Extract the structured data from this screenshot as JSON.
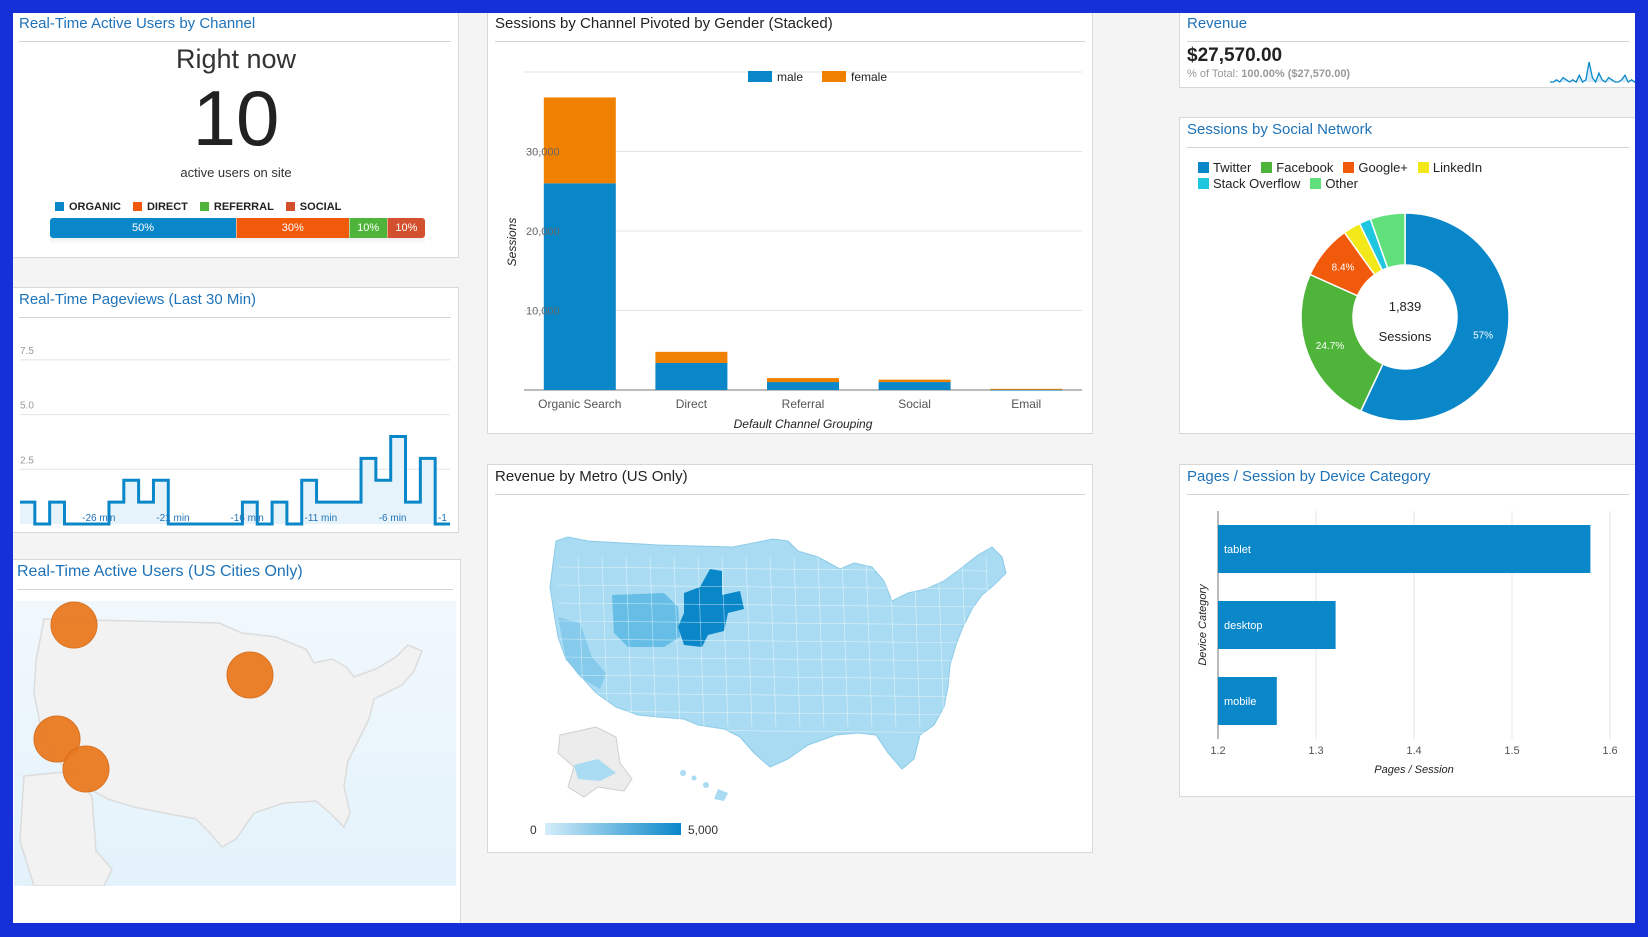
{
  "rt_channel": {
    "title": "Real-Time Active Users by Channel",
    "heading": "Right now",
    "count": "10",
    "subtitle": "active users on site",
    "legend": [
      {
        "label": "ORGANIC",
        "color": "#0a87c9"
      },
      {
        "label": "DIRECT",
        "color": "#f05a0a"
      },
      {
        "label": "REFERRAL",
        "color": "#4eb53a"
      },
      {
        "label": "SOCIAL",
        "color": "#d2502d"
      }
    ],
    "bar": [
      {
        "label": "50%",
        "value": 50,
        "color": "#0a87c9"
      },
      {
        "label": "30%",
        "value": 30,
        "color": "#f05a0a"
      },
      {
        "label": "10%",
        "value": 10,
        "color": "#4eb53a"
      },
      {
        "label": "10%",
        "value": 10,
        "color": "#d2502d"
      }
    ]
  },
  "rt_pageviews": {
    "title": "Real-Time Pageviews (Last 30 Min)",
    "chart_data": {
      "type": "area",
      "title": "Real-Time Pageviews (Last 30 Min)",
      "y_ticks": [
        "7.5",
        "5.0",
        "2.5"
      ],
      "ylim": [
        0,
        8.5
      ],
      "x_tick_labels": [
        "-26 min",
        "-21 min",
        "-16 min",
        "-11 min",
        "-6 min",
        "-1"
      ],
      "values": [
        1,
        0,
        1,
        0,
        0,
        0,
        1,
        2,
        1,
        2,
        0,
        0,
        0,
        0,
        0,
        1,
        0,
        1,
        0,
        2,
        1,
        1,
        1,
        3,
        2,
        4,
        1,
        3,
        0
      ]
    }
  },
  "rt_cities": {
    "title": "Real-Time Active Users (US Cities Only)",
    "bubble_color": "#ea7a20"
  },
  "sessions_gender": {
    "title": "Sessions by Channel Pivoted by Gender (Stacked)",
    "chart_data": {
      "type": "bar",
      "stacked": true,
      "title": "Sessions by Channel Pivoted by Gender (Stacked)",
      "categories": [
        "Organic Search",
        "Direct",
        "Referral",
        "Social",
        "Email"
      ],
      "series": [
        {
          "name": "male",
          "color": "#0a87c9",
          "values": [
            26000,
            3400,
            1000,
            1000,
            50
          ]
        },
        {
          "name": "female",
          "color": "#f08000",
          "values": [
            10800,
            1400,
            500,
            300,
            100
          ]
        }
      ],
      "xlabel": "Default Channel Grouping",
      "ylabel": "Sessions",
      "y_ticks": [
        "10,000",
        "20,000",
        "30,000"
      ],
      "ylim": [
        0,
        40000
      ],
      "legend": "top"
    }
  },
  "revenue": {
    "title": "Revenue",
    "value": "$27,570.00",
    "pct_label": "% of Total:",
    "pct_value": "100.00% ($27,570.00)",
    "spark": [
      0,
      0,
      1,
      0,
      2,
      1,
      0,
      1,
      0,
      3,
      0,
      1,
      9,
      2,
      0,
      4,
      1,
      0,
      2,
      1,
      0,
      0,
      1,
      3,
      0,
      1,
      0,
      2
    ]
  },
  "social": {
    "title": "Sessions by Social Network",
    "center_value": "1,839",
    "center_label": "Sessions",
    "chart_data": {
      "type": "pie",
      "donut": true,
      "title": "Sessions by Social Network",
      "legend": "top",
      "slices": [
        {
          "name": "Twitter",
          "value": 57,
          "color": "#0a87c9",
          "label": "57%"
        },
        {
          "name": "Facebook",
          "value": 24.7,
          "color": "#4eb53a",
          "label": "24.7%"
        },
        {
          "name": "Google+",
          "value": 8.4,
          "color": "#f05a0a",
          "label": "8.4%"
        },
        {
          "name": "LinkedIn",
          "value": 2.7,
          "color": "#f2e81a",
          "label": ""
        },
        {
          "name": "Stack Overflow",
          "value": 1.8,
          "color": "#1ec6e0",
          "label": ""
        },
        {
          "name": "Other",
          "value": 5.4,
          "color": "#5fe07a",
          "label": ""
        }
      ]
    }
  },
  "revenue_metro": {
    "title": "Revenue by Metro (US Only)",
    "scale_min": "0",
    "scale_max": "5,000",
    "colors": {
      "light": "#a9dcf2",
      "mid": "#5bb7e4",
      "dark": "#0a87c9",
      "bg": "#ffffff"
    }
  },
  "pages_device": {
    "title": "Pages / Session by Device Category",
    "chart_data": {
      "type": "bar",
      "orientation": "horizontal",
      "title": "Pages / Session by Device Category",
      "categories": [
        "tablet",
        "desktop",
        "mobile"
      ],
      "values": [
        1.58,
        1.32,
        1.26
      ],
      "xlabel": "Pages / Session",
      "ylabel": "Device Category",
      "x_ticks": [
        "1.2",
        "1.3",
        "1.4",
        "1.5",
        "1.6"
      ],
      "xlim": [
        1.2,
        1.6
      ],
      "color": "#0a87c9"
    }
  }
}
